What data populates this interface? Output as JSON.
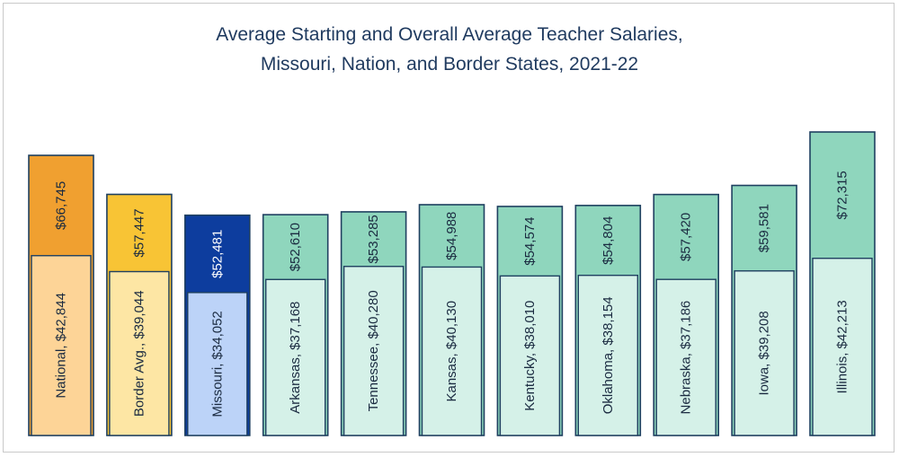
{
  "chart_data": {
    "type": "bar",
    "title": [
      "Average Starting and Overall Average Teacher Salaries,",
      "Missouri, Nation, and Border States, 2021-22"
    ],
    "xlabel": "",
    "ylabel": "",
    "ylim": [
      0,
      72315
    ],
    "grid": false,
    "legend": "none",
    "categories": [
      "National",
      "Border Avg.",
      "Missouri",
      "Arkansas",
      "Tennessee",
      "Kansas",
      "Kentucky",
      "Oklahoma",
      "Nebraska",
      "Iowa",
      "Illinois"
    ],
    "series": [
      {
        "values": [
          42844,
          39044,
          34052,
          37168,
          40280,
          40130,
          38010,
          38154,
          37186,
          39208,
          42213
        ],
        "labels": [
          "National,  $42,844",
          "Border Avg.,  $39,044",
          "Missouri,  $34,052",
          "Arkansas,  $37,168",
          "Tennessee,  $40,280",
          "Kansas,  $40,130",
          "Kentucky,  $38,010",
          "Oklahoma,  $38,154",
          "Nebraska,  $37,186",
          "Iowa,  $39,208",
          "Illinois,  $42,213"
        ]
      },
      {
        "values": [
          66745,
          57447,
          52481,
          52610,
          53285,
          54988,
          54574,
          54804,
          57420,
          59581,
          72315
        ],
        "labels": [
          "$66,745",
          "$57,447",
          "$52,481",
          "$52,610",
          "$53,285",
          "$54,988",
          "$54,574",
          "$54,804",
          "$57,420",
          "$59,581",
          "$72,315"
        ]
      }
    ],
    "colors": {
      "outer": [
        "#f0a030",
        "#f8c435",
        "#0d3d9e",
        "#8fd6bd",
        "#8fd6bd",
        "#8fd6bd",
        "#8fd6bd",
        "#8fd6bd",
        "#8fd6bd",
        "#8fd6bd",
        "#8fd6bd"
      ],
      "inner": [
        "#fdd497",
        "#fde6a4",
        "#bcd3f8",
        "#d5f1e8",
        "#d5f1e8",
        "#d5f1e8",
        "#d5f1e8",
        "#d5f1e8",
        "#d5f1e8",
        "#d5f1e8",
        "#d5f1e8"
      ],
      "outer_text": [
        "#1a2a40",
        "#1a2a40",
        "#ffffff",
        "#1a2a40",
        "#1a2a40",
        "#1a2a40",
        "#1a2a40",
        "#1a2a40",
        "#1a2a40",
        "#1a2a40",
        "#1a2a40"
      ],
      "inner_text": "#1a2a40",
      "border": "#1f4060"
    }
  }
}
